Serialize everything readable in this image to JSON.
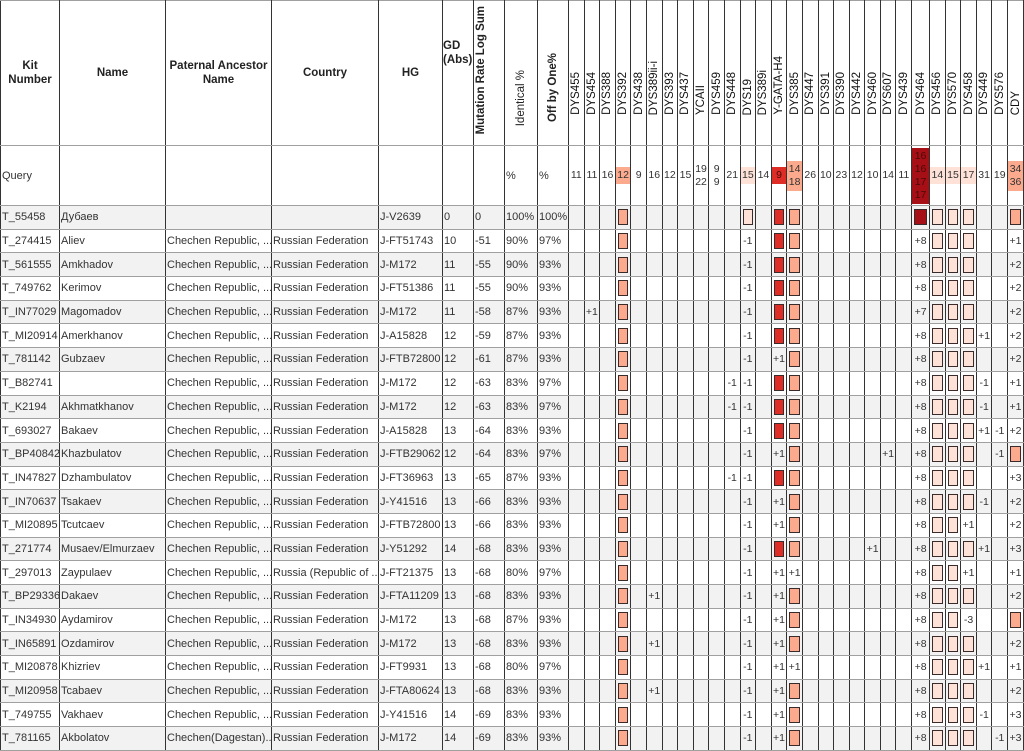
{
  "headers": {
    "kit": "Kit Number",
    "name": "Name",
    "ancestor": "Paternal Ancestor Name",
    "country": "Country",
    "hg": "HG",
    "gd": "GD (Abs)",
    "mutation": "Mutation Rate Log Sum",
    "identical": "Identical %",
    "offbyone": "Off by One%"
  },
  "markers": [
    "DYS455",
    "DYS454",
    "DYS388",
    "DYS392",
    "DYS438",
    "DYS389ii-i",
    "DYS393",
    "DYS437",
    "YCAII",
    "DYS459",
    "DYS448",
    "DYS19",
    "DYS389i",
    "Y-GATA-H4",
    "DYS385",
    "DYS447",
    "DYS391",
    "DYS390",
    "DYS442",
    "DYS460",
    "DYS607",
    "DYS439",
    "DYS464",
    "DYS456",
    "DYS570",
    "DYS458",
    "DYS449",
    "DYS576",
    "CDY"
  ],
  "colors": {
    "orange": "#fcaa8e",
    "light": "#fee2d7",
    "red": "#de2d26",
    "dark": "#a50f15",
    "row_alt": "#f2f2f2"
  },
  "marker_highlight": {
    "3": "orange",
    "11": "light",
    "13": "red",
    "14": "orange",
    "22": "dark",
    "23": "light",
    "24": "light",
    "25": "light",
    "28": "orange"
  },
  "query": {
    "label": "Query",
    "identical": "%",
    "offbyone": "%",
    "values": [
      "11",
      "11",
      "16",
      "12",
      "9",
      "16",
      "12",
      "15",
      "19\n22",
      "9\n9",
      "21",
      "15",
      "14",
      "9",
      "14\n18",
      "26",
      "10",
      "23",
      "12",
      "10",
      "14",
      "11",
      "16\n16\n17\n17",
      "14",
      "15",
      "17",
      "31",
      "19",
      "34\n36"
    ]
  },
  "rows": [
    {
      "kit": "T_55458",
      "name": "Дубаев",
      "ancestor": "",
      "country": "",
      "hg": "J-V2639",
      "gd": "0",
      "mut": "0",
      "ident": "100%",
      "off": "100%",
      "str": [
        null,
        null,
        null,
        true,
        null,
        null,
        null,
        null,
        null,
        null,
        null,
        true,
        null,
        true,
        true,
        null,
        null,
        null,
        null,
        null,
        null,
        null,
        true,
        true,
        true,
        true,
        null,
        null,
        true
      ]
    },
    {
      "kit": "T_274415",
      "name": "Aliev",
      "ancestor": "Chechen Republic, ...",
      "country": "Russian Federation",
      "hg": "J-FT51743",
      "gd": "10",
      "mut": "-51",
      "ident": "90%",
      "off": "97%",
      "str": [
        null,
        null,
        null,
        true,
        null,
        null,
        null,
        null,
        null,
        null,
        null,
        "-1",
        null,
        true,
        true,
        null,
        null,
        null,
        null,
        null,
        null,
        null,
        "+8",
        true,
        true,
        true,
        null,
        null,
        "+1"
      ]
    },
    {
      "kit": "T_561555",
      "name": "Amkhadov",
      "ancestor": "Chechen Republic, ...",
      "country": "Russian Federation",
      "hg": "J-M172",
      "gd": "11",
      "mut": "-55",
      "ident": "90%",
      "off": "93%",
      "str": [
        null,
        null,
        null,
        true,
        null,
        null,
        null,
        null,
        null,
        null,
        null,
        "-1",
        null,
        true,
        true,
        null,
        null,
        null,
        null,
        null,
        null,
        null,
        "+8",
        true,
        true,
        true,
        null,
        null,
        "+2"
      ]
    },
    {
      "kit": "T_749762",
      "name": "Kerimov",
      "ancestor": "Chechen Republic, ...",
      "country": "Russian Federation",
      "hg": "J-FT51386",
      "gd": "11",
      "mut": "-55",
      "ident": "90%",
      "off": "93%",
      "str": [
        null,
        null,
        null,
        true,
        null,
        null,
        null,
        null,
        null,
        null,
        null,
        "-1",
        null,
        true,
        true,
        null,
        null,
        null,
        null,
        null,
        null,
        null,
        "+8",
        true,
        true,
        true,
        null,
        null,
        "+2"
      ]
    },
    {
      "kit": "T_IN77029",
      "name": "Magomadov",
      "ancestor": "Chechen Republic, ...",
      "country": "Russian Federation",
      "hg": "J-M172",
      "gd": "11",
      "mut": "-58",
      "ident": "87%",
      "off": "93%",
      "str": [
        null,
        "+1",
        null,
        true,
        null,
        null,
        null,
        null,
        null,
        null,
        null,
        "-1",
        null,
        true,
        true,
        null,
        null,
        null,
        null,
        null,
        null,
        null,
        "+7",
        true,
        true,
        true,
        null,
        null,
        "+2"
      ]
    },
    {
      "kit": "T_MI20914",
      "name": "Amerkhanov",
      "ancestor": "Chechen Republic, ...",
      "country": "Russian Federation",
      "hg": "J-A15828",
      "gd": "12",
      "mut": "-59",
      "ident": "87%",
      "off": "93%",
      "str": [
        null,
        null,
        null,
        true,
        null,
        null,
        null,
        null,
        null,
        null,
        null,
        "-1",
        null,
        true,
        true,
        null,
        null,
        null,
        null,
        null,
        null,
        null,
        "+8",
        true,
        true,
        true,
        "+1",
        null,
        "+2"
      ]
    },
    {
      "kit": "T_781142",
      "name": "Gubzaev",
      "ancestor": "Chechen Republic, ...",
      "country": "Russian Federation",
      "hg": "J-FTB72800",
      "gd": "12",
      "mut": "-61",
      "ident": "87%",
      "off": "93%",
      "str": [
        null,
        null,
        null,
        true,
        null,
        null,
        null,
        null,
        null,
        null,
        null,
        "-1",
        null,
        "+1",
        true,
        null,
        null,
        null,
        null,
        null,
        null,
        null,
        "+8",
        true,
        true,
        true,
        null,
        null,
        "+2"
      ]
    },
    {
      "kit": "T_B82741",
      "name": "",
      "ancestor": "Chechen Republic, ...",
      "country": "Russian Federation",
      "hg": "J-M172",
      "gd": "12",
      "mut": "-63",
      "ident": "83%",
      "off": "97%",
      "str": [
        null,
        null,
        null,
        true,
        null,
        null,
        null,
        null,
        null,
        null,
        "-1",
        "-1",
        null,
        true,
        true,
        null,
        null,
        null,
        null,
        null,
        null,
        null,
        "+8",
        true,
        true,
        true,
        "-1",
        null,
        "+1"
      ]
    },
    {
      "kit": "T_K2194",
      "name": "Akhmatkhanov",
      "ancestor": "Chechen Republic, ...",
      "country": "Russian Federation",
      "hg": "J-M172",
      "gd": "12",
      "mut": "-63",
      "ident": "83%",
      "off": "97%",
      "str": [
        null,
        null,
        null,
        true,
        null,
        null,
        null,
        null,
        null,
        null,
        "-1",
        "-1",
        null,
        true,
        true,
        null,
        null,
        null,
        null,
        null,
        null,
        null,
        "+8",
        true,
        true,
        true,
        "-1",
        null,
        "+1"
      ]
    },
    {
      "kit": "T_693027",
      "name": "Bakaev",
      "ancestor": "Chechen Republic, ...",
      "country": "Russian Federation",
      "hg": "J-A15828",
      "gd": "13",
      "mut": "-64",
      "ident": "83%",
      "off": "93%",
      "str": [
        null,
        null,
        null,
        true,
        null,
        null,
        null,
        null,
        null,
        null,
        null,
        "-1",
        null,
        true,
        true,
        null,
        null,
        null,
        null,
        null,
        null,
        null,
        "+8",
        true,
        true,
        true,
        "+1",
        "-1",
        "+2"
      ]
    },
    {
      "kit": "T_BP40842",
      "name": "Khazbulatov",
      "ancestor": "Chechen Republic, ...",
      "country": "Russian Federation",
      "hg": "J-FTB29062",
      "gd": "12",
      "mut": "-64",
      "ident": "83%",
      "off": "97%",
      "str": [
        null,
        null,
        null,
        true,
        null,
        null,
        null,
        null,
        null,
        null,
        null,
        "-1",
        null,
        "+1",
        true,
        null,
        null,
        null,
        null,
        null,
        "+1",
        null,
        "+8",
        true,
        true,
        true,
        null,
        "-1",
        true
      ]
    },
    {
      "kit": "T_IN47827",
      "name": "Dzhambulatov",
      "ancestor": "Chechen Republic, ...",
      "country": "Russian Federation",
      "hg": "J-FT36963",
      "gd": "13",
      "mut": "-65",
      "ident": "87%",
      "off": "93%",
      "str": [
        null,
        null,
        null,
        true,
        null,
        null,
        null,
        null,
        null,
        null,
        "-1",
        "-1",
        null,
        true,
        true,
        null,
        null,
        null,
        null,
        null,
        null,
        null,
        "+8",
        true,
        true,
        true,
        null,
        null,
        "+3"
      ]
    },
    {
      "kit": "T_IN70637",
      "name": "Tsakaev",
      "ancestor": "Chechen Republic, ...",
      "country": "Russian Federation",
      "hg": "J-Y41516",
      "gd": "13",
      "mut": "-66",
      "ident": "83%",
      "off": "93%",
      "str": [
        null,
        null,
        null,
        true,
        null,
        null,
        null,
        null,
        null,
        null,
        null,
        "-1",
        null,
        "+1",
        true,
        null,
        null,
        null,
        null,
        null,
        null,
        null,
        "+8",
        true,
        true,
        true,
        "-1",
        null,
        "+2"
      ]
    },
    {
      "kit": "T_MI20895",
      "name": "Tcutcaev",
      "ancestor": "Chechen Republic, ...",
      "country": "Russian Federation",
      "hg": "J-FTB72800",
      "gd": "13",
      "mut": "-66",
      "ident": "83%",
      "off": "93%",
      "str": [
        null,
        null,
        null,
        true,
        null,
        null,
        null,
        null,
        null,
        null,
        null,
        "-1",
        null,
        "+1",
        true,
        null,
        null,
        null,
        null,
        null,
        null,
        null,
        "+8",
        true,
        true,
        "+1",
        null,
        null,
        "+2"
      ]
    },
    {
      "kit": "T_271774",
      "name": "Musaev/Elmurzaev",
      "ancestor": "Chechen Republic, ...",
      "country": "Russian Federation",
      "hg": "J-Y51292",
      "gd": "14",
      "mut": "-68",
      "ident": "83%",
      "off": "93%",
      "str": [
        null,
        null,
        null,
        true,
        null,
        null,
        null,
        null,
        null,
        null,
        null,
        "-1",
        null,
        true,
        true,
        null,
        null,
        null,
        null,
        "+1",
        null,
        null,
        "+8",
        true,
        true,
        true,
        "+1",
        null,
        "+3"
      ]
    },
    {
      "kit": "T_297013",
      "name": "Zaypulaev",
      "ancestor": "Chechen Republic, ...",
      "country": "Russia (Republic of ...",
      "hg": "J-FT21375",
      "gd": "13",
      "mut": "-68",
      "ident": "80%",
      "off": "97%",
      "str": [
        null,
        null,
        null,
        true,
        null,
        null,
        null,
        null,
        null,
        null,
        null,
        "-1",
        null,
        "+1",
        "+1",
        null,
        null,
        null,
        null,
        null,
        null,
        null,
        "+8",
        true,
        true,
        "+1",
        null,
        null,
        "+1"
      ]
    },
    {
      "kit": "T_BP29336",
      "name": "Dakaev",
      "ancestor": "Chechen Republic, ...",
      "country": "Russian Federation",
      "hg": "J-FTA11209",
      "gd": "13",
      "mut": "-68",
      "ident": "83%",
      "off": "93%",
      "str": [
        null,
        null,
        null,
        true,
        null,
        "+1",
        null,
        null,
        null,
        null,
        null,
        "-1",
        null,
        "+1",
        true,
        null,
        null,
        null,
        null,
        null,
        null,
        null,
        "+8",
        true,
        true,
        true,
        null,
        null,
        "+2"
      ]
    },
    {
      "kit": "T_IN34930",
      "name": "Aydamirov",
      "ancestor": "Chechen Republic, ...",
      "country": "Russian Federation",
      "hg": "J-M172",
      "gd": "13",
      "mut": "-68",
      "ident": "87%",
      "off": "93%",
      "str": [
        null,
        null,
        null,
        true,
        null,
        null,
        null,
        null,
        null,
        null,
        null,
        "-1",
        null,
        "+1",
        true,
        null,
        null,
        null,
        null,
        null,
        null,
        null,
        "+8",
        true,
        true,
        "-3",
        null,
        null,
        true
      ]
    },
    {
      "kit": "T_IN65891",
      "name": "Ozdamirov",
      "ancestor": "Chechen Republic, ...",
      "country": "Russian Federation",
      "hg": "J-M172",
      "gd": "13",
      "mut": "-68",
      "ident": "83%",
      "off": "93%",
      "str": [
        null,
        null,
        null,
        true,
        null,
        "+1",
        null,
        null,
        null,
        null,
        null,
        "-1",
        null,
        "+1",
        true,
        null,
        null,
        null,
        null,
        null,
        null,
        null,
        "+8",
        true,
        true,
        true,
        null,
        null,
        "+2"
      ]
    },
    {
      "kit": "T_MI20878",
      "name": "Khizriev",
      "ancestor": "Chechen Republic, ...",
      "country": "Russian Federation",
      "hg": "J-FT9931",
      "gd": "13",
      "mut": "-68",
      "ident": "80%",
      "off": "97%",
      "str": [
        null,
        null,
        null,
        true,
        null,
        null,
        null,
        null,
        null,
        null,
        null,
        "-1",
        null,
        "+1",
        "+1",
        null,
        null,
        null,
        null,
        null,
        null,
        null,
        "+8",
        true,
        true,
        true,
        "+1",
        null,
        "+1"
      ]
    },
    {
      "kit": "T_MI20958",
      "name": "Tcabaev",
      "ancestor": "Chechen Republic, ...",
      "country": "Russian Federation",
      "hg": "J-FTA80624",
      "gd": "13",
      "mut": "-68",
      "ident": "83%",
      "off": "93%",
      "str": [
        null,
        null,
        null,
        true,
        null,
        "+1",
        null,
        null,
        null,
        null,
        null,
        "-1",
        null,
        "+1",
        true,
        null,
        null,
        null,
        null,
        null,
        null,
        null,
        "+8",
        true,
        true,
        true,
        null,
        null,
        "+2"
      ]
    },
    {
      "kit": "T_749755",
      "name": "Vakhaev",
      "ancestor": "Chechen Republic, ...",
      "country": "Russian Federation",
      "hg": "J-Y41516",
      "gd": "14",
      "mut": "-69",
      "ident": "83%",
      "off": "93%",
      "str": [
        null,
        null,
        null,
        true,
        null,
        null,
        null,
        null,
        null,
        null,
        null,
        "-1",
        null,
        "+1",
        true,
        null,
        null,
        null,
        null,
        null,
        null,
        null,
        "+8",
        true,
        true,
        true,
        "-1",
        null,
        "+3"
      ]
    },
    {
      "kit": "T_781165",
      "name": "Akbolatov",
      "ancestor": "Chechen(Dagestan)...",
      "country": "Russian Federation",
      "hg": "J-M172",
      "gd": "14",
      "mut": "-69",
      "ident": "83%",
      "off": "93%",
      "str": [
        null,
        null,
        null,
        true,
        null,
        null,
        null,
        null,
        null,
        null,
        null,
        "-1",
        null,
        "+1",
        true,
        null,
        null,
        null,
        null,
        null,
        null,
        null,
        "+8",
        true,
        true,
        true,
        null,
        "-1",
        "+3"
      ]
    }
  ]
}
